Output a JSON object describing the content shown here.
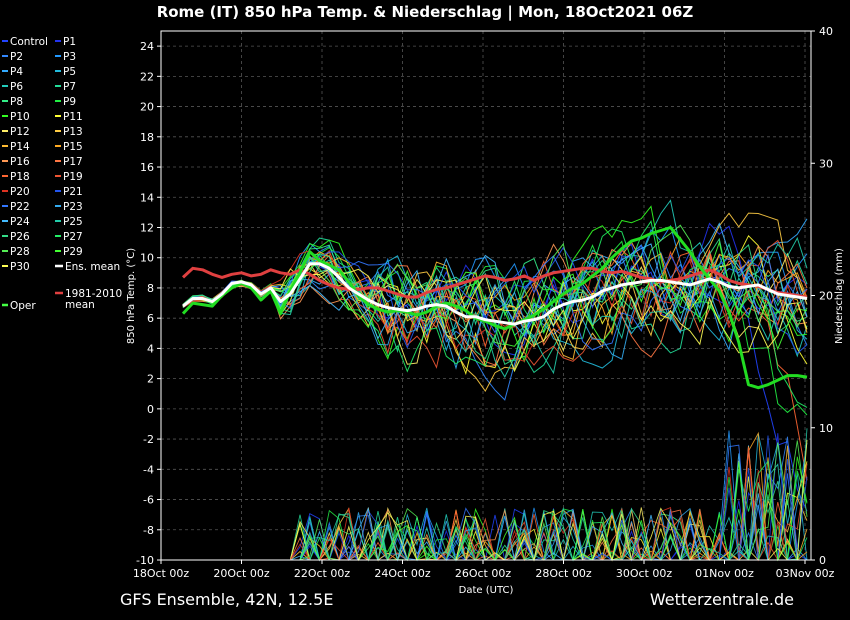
{
  "chart_data": {
    "type": "line",
    "title": "Rome  (IT)  850 hPa Temp. & Niederschlag | Mon, 18Oct2021 06Z",
    "xlabel": "Date (UTC)",
    "ylabel": "850 hPa Temp. (°C)",
    "y2label": "Niederschlag (mm)",
    "footer_left": "GFS Ensemble, 42N, 12.5E",
    "footer_right": "Wetterzentrale.de",
    "ylim": [
      -10,
      25
    ],
    "y2lim": [
      0,
      40
    ],
    "yticks": [
      "24",
      "22",
      "20",
      "18",
      "16",
      "14",
      "12",
      "10",
      "8",
      "6",
      "4",
      "2",
      "0",
      "-2",
      "-4",
      "-6",
      "-8",
      "-10"
    ],
    "y2ticks": [
      "40",
      "30",
      "20",
      "10",
      "0"
    ],
    "xticks": [
      "18Oct 00z",
      "20Oct 00z",
      "22Oct 00z",
      "24Oct 00z",
      "26Oct 00z",
      "28Oct 00z",
      "30Oct 00z",
      "01Nov 00z",
      "03Nov 00z"
    ],
    "grid": true,
    "legend_position": "left",
    "colors": {
      "ens_mean": "#ffffff",
      "climate_mean": "#e04040",
      "oper": "#22dd22",
      "background": "#000000",
      "grid": "#555555"
    },
    "legend": [
      {
        "name": "Control",
        "color": "#2244ff"
      },
      {
        "name": "P1",
        "color": "#2233ee"
      },
      {
        "name": "P2",
        "color": "#3388ff"
      },
      {
        "name": "P3",
        "color": "#2299ff"
      },
      {
        "name": "P4",
        "color": "#33aaff"
      },
      {
        "name": "P5",
        "color": "#22bbdd"
      },
      {
        "name": "P6",
        "color": "#22ccbb"
      },
      {
        "name": "P7",
        "color": "#22dd99"
      },
      {
        "name": "P8",
        "color": "#33ee88"
      },
      {
        "name": "P9",
        "color": "#22ee44"
      },
      {
        "name": "P10",
        "color": "#33ff22"
      },
      {
        "name": "P11",
        "color": "#ffff33"
      },
      {
        "name": "P12",
        "color": "#ffee66"
      },
      {
        "name": "P13",
        "color": "#ffcc44"
      },
      {
        "name": "P14",
        "color": "#ffbb33"
      },
      {
        "name": "P15",
        "color": "#ffaa22"
      },
      {
        "name": "P16",
        "color": "#ff9955"
      },
      {
        "name": "P17",
        "color": "#ff7744"
      },
      {
        "name": "P18",
        "color": "#ff6633"
      },
      {
        "name": "P19",
        "color": "#ee5533"
      },
      {
        "name": "P20",
        "color": "#dd3322"
      },
      {
        "name": "P21",
        "color": "#2255ee"
      },
      {
        "name": "P22",
        "color": "#3377ff"
      },
      {
        "name": "P23",
        "color": "#33aaee"
      },
      {
        "name": "P24",
        "color": "#44bbff"
      },
      {
        "name": "P25",
        "color": "#22ccaa"
      },
      {
        "name": "P26",
        "color": "#33dd88"
      },
      {
        "name": "P27",
        "color": "#22ee66"
      },
      {
        "name": "P28",
        "color": "#55ee55"
      },
      {
        "name": "P29",
        "color": "#44ff33"
      },
      {
        "name": "P30",
        "color": "#ffff55"
      },
      {
        "name": "Ens. mean",
        "color": "#ffffff"
      },
      {
        "name": "1981-2010\nmean",
        "color": "#e04040"
      },
      {
        "name": "Oper",
        "color": "#44ff44"
      }
    ],
    "ens_mean": {
      "x": [
        0,
        1,
        2,
        3,
        4,
        5,
        6,
        7,
        8,
        9,
        10,
        11,
        12,
        13,
        14,
        15,
        16,
        17,
        18,
        19,
        20,
        21,
        22,
        23,
        24,
        25,
        26,
        27,
        28,
        29,
        30,
        31,
        32,
        33,
        34,
        35,
        36,
        37,
        38,
        39,
        40,
        41,
        42,
        43,
        44,
        45,
        46,
        47,
        48,
        49,
        50,
        51,
        52,
        53,
        54,
        55,
        56,
        57,
        58,
        59,
        60,
        61,
        62,
        63,
        64
      ],
      "values": [
        6.8,
        7.3,
        7.3,
        7.1,
        7.6,
        8.3,
        8.4,
        8.2,
        7.6,
        8.0,
        7.1,
        7.6,
        8.6,
        9.6,
        9.6,
        9.3,
        8.7,
        8.0,
        7.6,
        7.2,
        6.9,
        6.7,
        6.6,
        6.5,
        6.6,
        6.8,
        6.9,
        6.8,
        6.4,
        6.1,
        6.1,
        5.9,
        5.8,
        5.7,
        5.6,
        5.8,
        5.9,
        6.1,
        6.6,
        6.9,
        7.1,
        7.2,
        7.4,
        7.8,
        8.0,
        8.2,
        8.3,
        8.4,
        8.5,
        8.5,
        8.4,
        8.3,
        8.2,
        8.4,
        8.6,
        8.4,
        8.1,
        8.0,
        8.1,
        8.2,
        7.9,
        7.6,
        7.5,
        7.4,
        7.3
      ]
    },
    "climate_mean": {
      "x": [
        0,
        1,
        2,
        3,
        4,
        5,
        6,
        7,
        8,
        9,
        10,
        11,
        12,
        13,
        14,
        15,
        16,
        17,
        18,
        19,
        20,
        21,
        22,
        23,
        24,
        25,
        26,
        27,
        28,
        29,
        30,
        31,
        32,
        33,
        34,
        35,
        36,
        37,
        38,
        39,
        40,
        41,
        42,
        43,
        44,
        45,
        46,
        47,
        48,
        49,
        50,
        51,
        52,
        53,
        54,
        55,
        56,
        57,
        58,
        59,
        60,
        61,
        62,
        63,
        64
      ],
      "values": [
        8.7,
        9.3,
        9.2,
        8.9,
        8.7,
        8.9,
        9.0,
        8.8,
        8.9,
        9.2,
        9.0,
        8.9,
        9.2,
        8.9,
        8.5,
        8.2,
        8.0,
        7.9,
        7.9,
        8.0,
        8.0,
        7.8,
        7.6,
        7.4,
        7.4,
        7.7,
        7.9,
        8.0,
        8.2,
        8.4,
        8.6,
        8.8,
        8.7,
        8.5,
        8.6,
        8.8,
        8.5,
        8.8,
        9.0,
        9.1,
        9.2,
        9.3,
        9.3,
        9.1,
        9.0,
        9.1,
        8.9,
        8.7,
        8.6,
        8.4,
        8.5,
        8.6,
        8.8,
        9.0,
        9.2,
        8.9,
        8.5,
        8.3,
        8.2,
        8.1,
        7.9,
        7.7,
        7.6,
        7.5,
        7.4
      ]
    },
    "oper": {
      "x": [
        0,
        1,
        2,
        3,
        4,
        5,
        6,
        7,
        8,
        9,
        10,
        11,
        12,
        13,
        14,
        15,
        16,
        17,
        18,
        19,
        20,
        21,
        22,
        23,
        24,
        25,
        26,
        27,
        28,
        29,
        30,
        31,
        32,
        33,
        34,
        35,
        36,
        37,
        38,
        39,
        40,
        41,
        42,
        43,
        44,
        45,
        46,
        47,
        48,
        49,
        50,
        51,
        52,
        53,
        54,
        55,
        56,
        57,
        58,
        59,
        60,
        61,
        62,
        63,
        64
      ],
      "values": [
        6.3,
        7.0,
        6.9,
        6.8,
        7.5,
        8.0,
        8.3,
        8.0,
        7.2,
        7.8,
        6.3,
        7.8,
        9.0,
        10.4,
        9.8,
        9.5,
        9.2,
        8.4,
        7.5,
        6.9,
        6.6,
        6.4,
        6.5,
        6.4,
        6.2,
        6.4,
        6.8,
        7.0,
        6.8,
        6.5,
        6.0,
        5.8,
        5.5,
        5.3,
        5.6,
        5.9,
        6.2,
        6.6,
        7.1,
        7.6,
        8.0,
        8.3,
        8.8,
        9.3,
        10.0,
        10.6,
        11.1,
        11.3,
        11.6,
        11.8,
        12.0,
        11.2,
        10.4,
        9.4,
        8.6,
        7.8,
        6.4,
        4.4,
        1.6,
        1.4,
        1.6,
        1.9,
        2.2,
        2.2,
        2.1
      ]
    },
    "members_note": "30 perturbed members + control plotted as thin spaghetti lines"
  }
}
